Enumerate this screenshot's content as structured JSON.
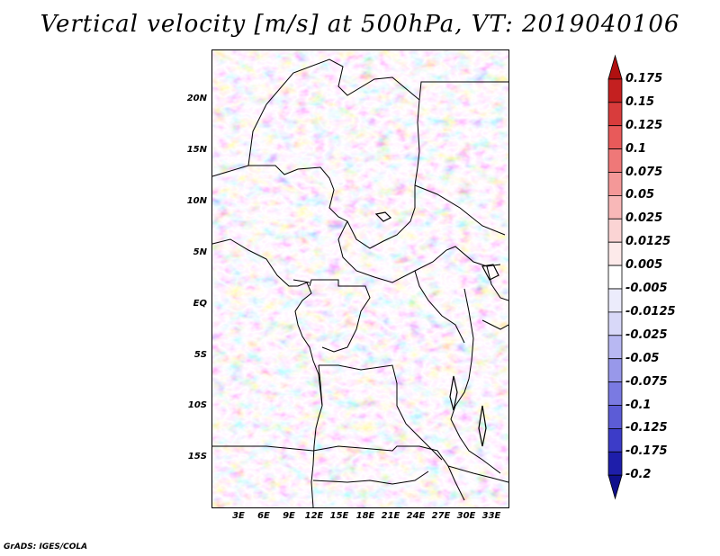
{
  "title": "Vertical velocity [m/s] at 500hPa, VT: 2019040106",
  "credit": "GrADS: IGES/COLA",
  "map": {
    "y_labels": [
      "20N",
      "15N",
      "10N",
      "5N",
      "EQ",
      "5S",
      "10S",
      "15S"
    ],
    "x_labels": [
      "3E",
      "6E",
      "9E",
      "12E",
      "15E",
      "18E",
      "21E",
      "24E",
      "27E",
      "30E",
      "33E"
    ]
  },
  "colorbar": {
    "labels": [
      "0.175",
      "0.15",
      "0.125",
      "0.1",
      "0.075",
      "0.05",
      "0.025",
      "0.0125",
      "0.005",
      "-0.005",
      "-0.0125",
      "-0.025",
      "-0.05",
      "-0.075",
      "-0.1",
      "-0.125",
      "-0.175",
      "-0.2"
    ],
    "colors": [
      "#b01010",
      "#c42020",
      "#d83c3c",
      "#e85a5a",
      "#ef7878",
      "#f49898",
      "#f8b8b8",
      "#fbd4d4",
      "#fdeaea",
      "#ffffff",
      "#ececfc",
      "#d8d8f8",
      "#b8b8f2",
      "#9898ea",
      "#7a7ae2",
      "#5c5cd6",
      "#3c3cc8",
      "#1e1eaa",
      "#10108c"
    ]
  }
}
